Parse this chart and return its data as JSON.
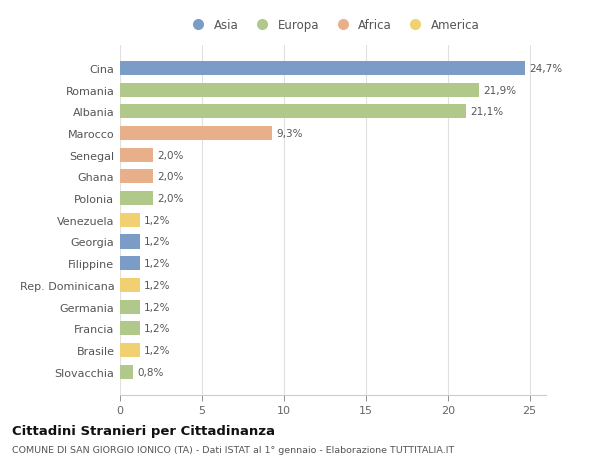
{
  "countries": [
    "Cina",
    "Romania",
    "Albania",
    "Marocco",
    "Senegal",
    "Ghana",
    "Polonia",
    "Venezuela",
    "Georgia",
    "Filippine",
    "Rep. Dominicana",
    "Germania",
    "Francia",
    "Brasile",
    "Slovacchia"
  ],
  "values": [
    24.7,
    21.9,
    21.1,
    9.3,
    2.0,
    2.0,
    2.0,
    1.2,
    1.2,
    1.2,
    1.2,
    1.2,
    1.2,
    1.2,
    0.8
  ],
  "labels": [
    "24,7%",
    "21,9%",
    "21,1%",
    "9,3%",
    "2,0%",
    "2,0%",
    "2,0%",
    "1,2%",
    "1,2%",
    "1,2%",
    "1,2%",
    "1,2%",
    "1,2%",
    "1,2%",
    "0,8%"
  ],
  "continents": [
    "Asia",
    "Europa",
    "Europa",
    "Africa",
    "Africa",
    "Africa",
    "Europa",
    "America",
    "Asia",
    "Asia",
    "America",
    "Europa",
    "Europa",
    "America",
    "Europa"
  ],
  "colors": {
    "Asia": "#7a9cc7",
    "Europa": "#b0c88a",
    "Africa": "#e8b08a",
    "America": "#f0d070"
  },
  "title": "Cittadini Stranieri per Cittadinanza",
  "subtitle": "COMUNE DI SAN GIORGIO IONICO (TA) - Dati ISTAT al 1° gennaio - Elaborazione TUTTITALIA.IT",
  "xlim": [
    0,
    26
  ],
  "xticks": [
    0,
    5,
    10,
    15,
    20,
    25
  ],
  "background_color": "#ffffff",
  "grid_color": "#e0e0e0",
  "bar_height": 0.65
}
